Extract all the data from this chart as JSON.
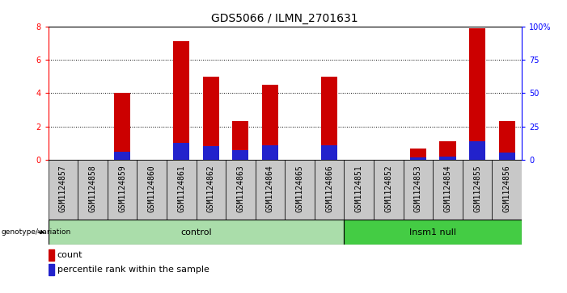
{
  "title": "GDS5066 / ILMN_2701631",
  "samples": [
    "GSM1124857",
    "GSM1124858",
    "GSM1124859",
    "GSM1124860",
    "GSM1124861",
    "GSM1124862",
    "GSM1124863",
    "GSM1124864",
    "GSM1124865",
    "GSM1124866",
    "GSM1124851",
    "GSM1124852",
    "GSM1124853",
    "GSM1124854",
    "GSM1124855",
    "GSM1124856"
  ],
  "counts": [
    0,
    0,
    4.0,
    0,
    7.1,
    5.0,
    2.3,
    4.5,
    0,
    5.0,
    0,
    0,
    0.65,
    1.1,
    7.9,
    2.3
  ],
  "percentile_vals": [
    0,
    0,
    0.5,
    0,
    1.0,
    0.8,
    0.55,
    0.85,
    0,
    0.85,
    0,
    0,
    0.15,
    0.2,
    1.1,
    0.45
  ],
  "control_samples": 10,
  "insm1_samples": 6,
  "group1_label": "control",
  "group2_label": "Insm1 null",
  "genotype_label": "genotype/variation",
  "bar_color_red": "#cc0000",
  "bar_color_blue": "#2222cc",
  "bar_bg_color": "#c8c8c8",
  "group1_bg": "#aaddaa",
  "group2_bg": "#44cc44",
  "ylim_left": [
    0,
    8
  ],
  "ylim_right": [
    0,
    100
  ],
  "yticks_left": [
    0,
    2,
    4,
    6,
    8
  ],
  "yticks_right": [
    0,
    25,
    50,
    75,
    100
  ],
  "yticklabels_right": [
    "0",
    "25",
    "50",
    "75",
    "100%"
  ],
  "legend_count": "count",
  "legend_pct": "percentile rank within the sample",
  "title_fontsize": 10,
  "tick_fontsize": 7,
  "label_fontsize": 8
}
